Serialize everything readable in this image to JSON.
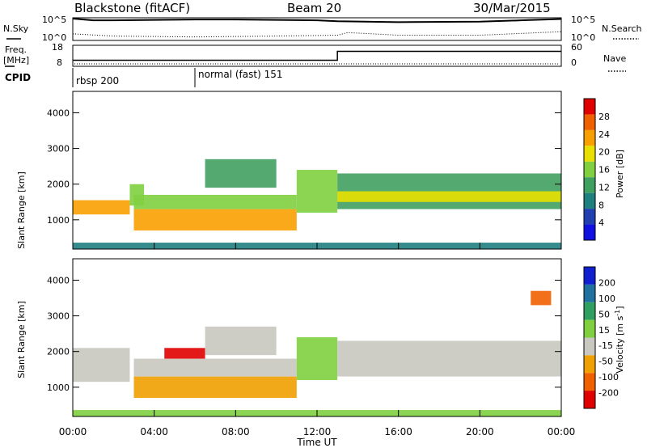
{
  "header": {
    "station": "Blackstone (fitACF)",
    "beam": "Beam 20",
    "date": "30/Mar/2015"
  },
  "panels": {
    "noise": {
      "left_label": "N.Sky",
      "right_label": "N.Search",
      "left_ticks": [
        "10^5",
        "10^0"
      ],
      "right_ticks": [
        "10^5",
        "10^0"
      ]
    },
    "freq": {
      "left_label_line1": "Freq.",
      "left_label_line2": "[MHz]",
      "right_label": "Nave",
      "left_ticks": [
        "18",
        "8"
      ],
      "right_ticks": [
        "60",
        "0"
      ],
      "freq_steps": [
        {
          "from_hour": 0,
          "to_hour": 13,
          "mhz": 10.5
        },
        {
          "from_hour": 13,
          "to_hour": 24,
          "mhz": 15.5
        }
      ]
    },
    "cpid": {
      "label": "CPID",
      "modes": [
        {
          "name": "rbsp 200",
          "start_hour": 0
        },
        {
          "name": "normal (fast) 151",
          "start_hour": 6
        }
      ]
    }
  },
  "colorbars": {
    "power": {
      "label": "Power [dB]",
      "ticks": [
        "28",
        "24",
        "20",
        "16",
        "12",
        "8",
        "4"
      ],
      "colors": [
        "#e00000",
        "#f06000",
        "#f8a000",
        "#e8e000",
        "#80d040",
        "#40a060",
        "#208080",
        "#2040b0",
        "#1010e0"
      ]
    },
    "velocity": {
      "label": "Velocity [m s",
      "label_sup": "-1",
      "label_end": "]",
      "ticks": [
        "200",
        "100",
        "50",
        "15",
        "-15",
        "-50",
        "-100",
        "-200"
      ],
      "colors": [
        "#1020d0",
        "#2070a0",
        "#30a060",
        "#80d040",
        "#c8c8c0",
        "#f0a000",
        "#f06000",
        "#e00000"
      ]
    }
  },
  "chart_data": [
    {
      "type": "line",
      "title": "N.Sky / N.Search",
      "x_unit": "hours UT",
      "series": [
        {
          "name": "N.Sky",
          "x": [
            0,
            1,
            2,
            4,
            6,
            8,
            10,
            12,
            13,
            16,
            20,
            22,
            24
          ],
          "values": [
            5.0,
            4.6,
            4.6,
            4.7,
            4.8,
            4.8,
            4.7,
            4.6,
            4.4,
            4.2,
            4.3,
            4.6,
            4.9
          ]
        },
        {
          "name": "N.Search",
          "x": [
            0,
            2,
            6,
            10,
            13,
            13.5,
            16,
            20,
            22,
            24
          ],
          "values": [
            1.5,
            1.0,
            0.8,
            1.0,
            1.2,
            1.8,
            1.2,
            1.2,
            1.6,
            2.0
          ]
        }
      ]
    },
    {
      "type": "line",
      "title": "Freq. / Nave",
      "x_unit": "hours UT",
      "series": [
        {
          "name": "Freq. [MHz]",
          "x": [
            0,
            13,
            13,
            24
          ],
          "values": [
            10.5,
            10.5,
            15.5,
            15.5
          ]
        }
      ]
    },
    {
      "type": "heatmap",
      "xlabel": "Time UT",
      "ylabel": "Slant Range [km]",
      "x_ticks": [
        "00:00",
        "04:00",
        "08:00",
        "12:00",
        "16:00",
        "20:00",
        "00:00"
      ],
      "y_ticks": [
        "1000",
        "2000",
        "3000",
        "4000"
      ],
      "xlim": [
        0,
        24
      ],
      "ylim": [
        180,
        4600
      ],
      "colorbar": "Power [dB]",
      "clim": [
        0,
        30
      ],
      "regions": [
        {
          "x0": 0.0,
          "x1": 2.8,
          "r0": 1150,
          "r1": 1550,
          "v": 22
        },
        {
          "x0": 2.8,
          "x1": 3.5,
          "r0": 1400,
          "r1": 2000,
          "v": 16
        },
        {
          "x0": 3.0,
          "x1": 11.0,
          "r0": 700,
          "r1": 1300,
          "v": 24
        },
        {
          "x0": 3.0,
          "x1": 11.0,
          "r0": 1300,
          "r1": 1700,
          "v": 14
        },
        {
          "x0": 6.5,
          "x1": 10.0,
          "r0": 1900,
          "r1": 2700,
          "v": 12
        },
        {
          "x0": 11.0,
          "x1": 13.0,
          "r0": 1200,
          "r1": 2400,
          "v": 14
        },
        {
          "x0": 13.0,
          "x1": 24.0,
          "r0": 1300,
          "r1": 2300,
          "v": 12
        },
        {
          "x0": 13.0,
          "x1": 24.0,
          "r0": 1500,
          "r1": 1800,
          "v": 20
        },
        {
          "x0": 0.0,
          "x1": 24.0,
          "r0": 180,
          "r1": 360,
          "v": 8
        }
      ]
    },
    {
      "type": "heatmap",
      "xlabel": "Time UT",
      "ylabel": "Slant Range [km]",
      "x_ticks": [
        "00:00",
        "04:00",
        "08:00",
        "12:00",
        "16:00",
        "20:00",
        "00:00"
      ],
      "y_ticks": [
        "1000",
        "2000",
        "3000",
        "4000"
      ],
      "xlim": [
        0,
        24
      ],
      "ylim": [
        180,
        4600
      ],
      "colorbar": "Velocity [m s-1]",
      "clim": [
        -200,
        200
      ],
      "regions": [
        {
          "x0": 0.0,
          "x1": 2.8,
          "r0": 1150,
          "r1": 2100,
          "v": 0
        },
        {
          "x0": 3.0,
          "x1": 11.0,
          "r0": 700,
          "r1": 1300,
          "v": -60
        },
        {
          "x0": 3.0,
          "x1": 11.0,
          "r0": 1300,
          "r1": 1800,
          "v": 0
        },
        {
          "x0": 4.5,
          "x1": 6.5,
          "r0": 1800,
          "r1": 2100,
          "v": -180
        },
        {
          "x0": 6.5,
          "x1": 10.0,
          "r0": 1900,
          "r1": 2700,
          "v": 0
        },
        {
          "x0": 11.0,
          "x1": 13.0,
          "r0": 1200,
          "r1": 2400,
          "v": 10
        },
        {
          "x0": 13.0,
          "x1": 24.0,
          "r0": 1300,
          "r1": 2300,
          "v": 0
        },
        {
          "x0": 22.5,
          "x1": 23.5,
          "r0": 3300,
          "r1": 3700,
          "v": -150
        },
        {
          "x0": 0.0,
          "x1": 24.0,
          "r0": 180,
          "r1": 360,
          "v": 40
        }
      ]
    }
  ]
}
